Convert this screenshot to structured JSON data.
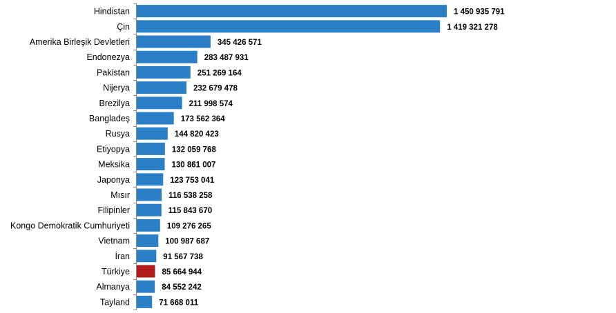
{
  "chart_data": {
    "type": "bar",
    "orientation": "horizontal",
    "title": "",
    "xlabel": "",
    "ylabel": "",
    "grid": false,
    "colors": {
      "default": "#2a7fc6",
      "highlight": "#b01b1b"
    },
    "highlight": "Türkiye",
    "categories": [
      "Hindistan",
      "Çin",
      "Amerika Birleşik Devletleri",
      "Endonezya",
      "Pakistan",
      "Nijerya",
      "Brezilya",
      "Bangladeş",
      "Rusya",
      "Etiyopya",
      "Meksika",
      "Japonya",
      "Mısır",
      "Filipinler",
      "Kongo Demokratik Cumhuriyeti",
      "Vietnam",
      "İran",
      "Türkiye",
      "Almanya",
      "Tayland"
    ],
    "values": [
      1450935791,
      1419321278,
      345426571,
      283487931,
      251269164,
      232679478,
      211998574,
      173562364,
      144820423,
      132059768,
      130861007,
      123753041,
      116538258,
      115843670,
      109276265,
      100987687,
      91567738,
      85664944,
      84552242,
      71668011
    ],
    "labels": [
      "1 450 935 791",
      "1 419 321 278",
      "345 426 571",
      "283 487 931",
      "251 269 164",
      "232 679 478",
      "211 998 574",
      "173 562 364",
      "144 820 423",
      "132 059 768",
      "130 861 007",
      "123 753 041",
      "116 538 258",
      "115 843 670",
      "109 276 265",
      "100 987 687",
      "91 567 738",
      "85 664 944",
      "84 552 242",
      "71 668 011"
    ],
    "xlim": [
      0,
      1450935791
    ]
  }
}
